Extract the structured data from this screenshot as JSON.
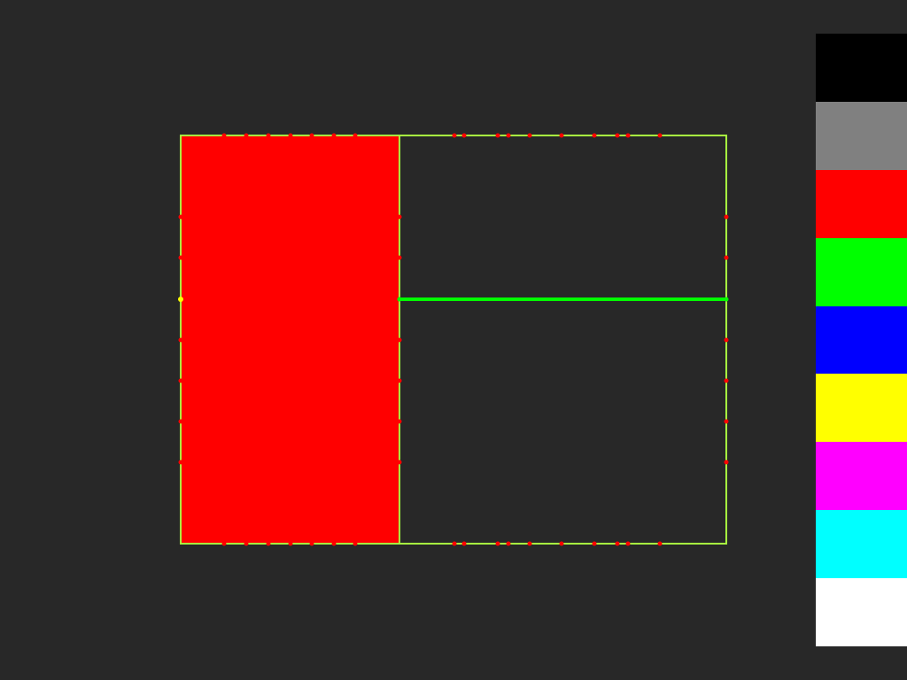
{
  "canvas": {
    "background": "#282828",
    "regions": [
      {
        "name": "left-panel",
        "fill": "#ff0000"
      },
      {
        "name": "top-right-panel",
        "fill": "#282828"
      },
      {
        "name": "bottom-right-panel",
        "fill": "#282828"
      }
    ],
    "outline_color": "#a8ff40",
    "divider_color": "#00ff00",
    "vertex_color": "#ff0000",
    "selected_vertex_color": "#ffff00"
  },
  "palette": {
    "colors": [
      {
        "name": "black",
        "hex": "#000000"
      },
      {
        "name": "gray",
        "hex": "#808080"
      },
      {
        "name": "red",
        "hex": "#ff0000"
      },
      {
        "name": "green",
        "hex": "#00ff00"
      },
      {
        "name": "blue",
        "hex": "#0000ff"
      },
      {
        "name": "yellow",
        "hex": "#ffff00"
      },
      {
        "name": "magenta",
        "hex": "#ff00ff"
      },
      {
        "name": "cyan",
        "hex": "#00ffff"
      },
      {
        "name": "white",
        "hex": "#ffffff"
      }
    ]
  }
}
